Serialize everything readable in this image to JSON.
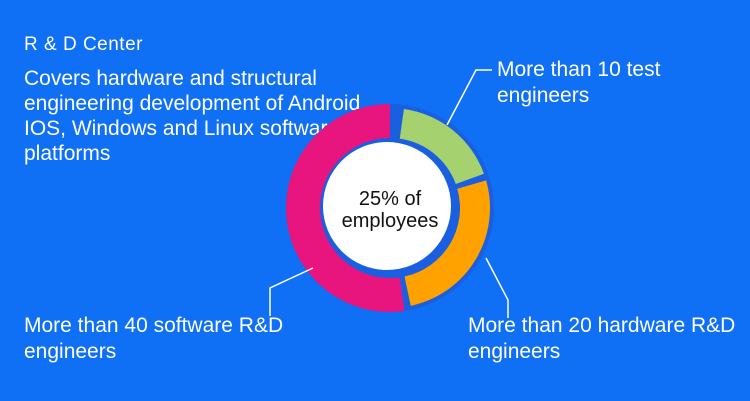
{
  "header": {
    "title": "R & D Center",
    "description": "Covers hardware and structural engineering development of Android, IOS, Windows and Linux software platforms"
  },
  "chart_data": {
    "type": "pie",
    "center_label": [
      "25% of",
      "employees"
    ],
    "slices": [
      {
        "label": "More than 10 test engineers",
        "value": 10,
        "color": "#a5d16e"
      },
      {
        "label": "More than 20 hardware R&D engineers",
        "value": 20,
        "color": "#ffa200"
      },
      {
        "label": "More than 40 software R&D engineers",
        "value": 40,
        "color": "#e8157f"
      }
    ]
  },
  "colors": {
    "background": "#0f6ff5",
    "ring": "#1a5fe0",
    "center": "#ffffff",
    "text": "#ffffff"
  }
}
